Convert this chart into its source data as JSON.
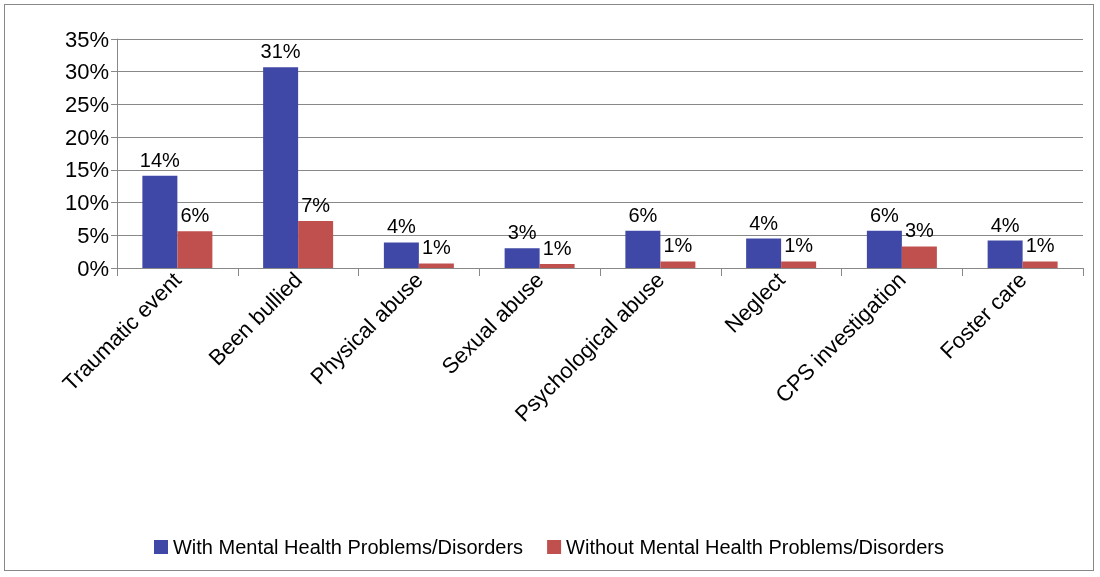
{
  "chart_data": {
    "type": "bar",
    "categories": [
      "Traumatic event",
      "Been bullied",
      "Physical abuse",
      "Sexual abuse",
      "Psychological abuse",
      "Neglect",
      "CPS investigation",
      "Foster care"
    ],
    "series": [
      {
        "name": "With Mental Health Problems/Disorders",
        "color": "#3f48a6",
        "values": [
          14.1,
          30.7,
          3.9,
          3.0,
          5.7,
          4.5,
          5.7,
          4.2
        ],
        "value_labels": [
          "14%",
          "31%",
          "4%",
          "3%",
          "6%",
          "4%",
          "6%",
          "4%"
        ]
      },
      {
        "name": "Without Mental Health Problems/Disorders",
        "color": "#c0504d",
        "values": [
          5.6,
          7.2,
          0.7,
          0.6,
          1.0,
          1.0,
          3.3,
          1.0
        ],
        "value_labels": [
          "6%",
          "7%",
          "1%",
          "1%",
          "1%",
          "1%",
          "3%",
          "1%"
        ]
      }
    ],
    "ylim": [
      0,
      35
    ],
    "yticks": [
      {
        "value": 0,
        "label": "0%"
      },
      {
        "value": 5,
        "label": "5%"
      },
      {
        "value": 10,
        "label": "10%"
      },
      {
        "value": 15,
        "label": "15%"
      },
      {
        "value": 20,
        "label": "20%"
      },
      {
        "value": 25,
        "label": "25%"
      },
      {
        "value": 30,
        "label": "30%"
      },
      {
        "value": 35,
        "label": "35%"
      }
    ],
    "grid": "y",
    "legend": "bottom"
  }
}
